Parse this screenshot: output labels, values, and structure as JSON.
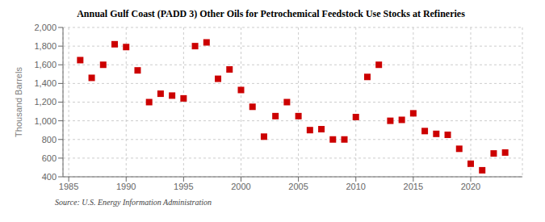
{
  "chart_data": {
    "type": "scatter",
    "title": "Annual Gulf Coast (PADD 3) Other Oils for Petrochemical Feedstock Use Stocks at Refineries",
    "ylabel": "Thousand Barrels",
    "source": "Source: U.S. Energy Information Administration",
    "x": [
      1986,
      1987,
      1988,
      1989,
      1990,
      1991,
      1992,
      1993,
      1994,
      1995,
      1996,
      1997,
      1998,
      1999,
      2000,
      2001,
      2002,
      2003,
      2004,
      2005,
      2006,
      2007,
      2008,
      2009,
      2010,
      2011,
      2012,
      2013,
      2014,
      2015,
      2016,
      2017,
      2018,
      2019,
      2020,
      2021,
      2022,
      2023
    ],
    "values": [
      1650,
      1460,
      1600,
      1820,
      1790,
      1540,
      1200,
      1290,
      1270,
      1240,
      1800,
      1840,
      1450,
      1550,
      1330,
      1150,
      830,
      1050,
      1200,
      1050,
      900,
      910,
      800,
      800,
      1040,
      1470,
      1600,
      1000,
      1010,
      1080,
      890,
      860,
      850,
      700,
      540,
      470,
      650,
      660
    ],
    "color": "#cc0000",
    "marker": "square",
    "grid": true,
    "xlim": [
      1984.5,
      2024.5
    ],
    "xticks": [
      1985,
      1990,
      1995,
      2000,
      2005,
      2010,
      2015,
      2020
    ],
    "ylim": [
      400,
      2000
    ],
    "yticks": [
      400,
      600,
      800,
      {
        "value": 1000,
        "label": "1,000"
      },
      {
        "value": 1200,
        "label": "1,200"
      },
      {
        "value": 1400,
        "label": "1,400"
      },
      {
        "value": 1600,
        "label": "1,600"
      },
      {
        "value": 1800,
        "label": "1,800"
      },
      {
        "value": 2000,
        "label": "2,000"
      }
    ]
  }
}
